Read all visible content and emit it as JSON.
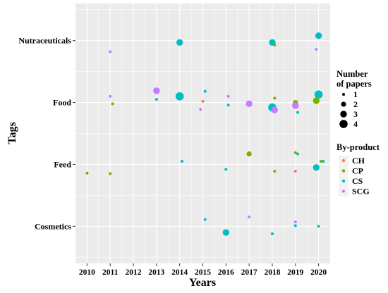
{
  "chart_data": {
    "type": "scatter",
    "xlabel": "Years",
    "ylabel": "Tags",
    "x_ticks": [
      "2010",
      "2011",
      "2012",
      "2013",
      "2014",
      "2015",
      "2016",
      "2017",
      "2018",
      "2019",
      "2020"
    ],
    "y_categories": [
      "Cosmetics",
      "Feed",
      "Food",
      "Nutraceuticals"
    ],
    "xlim": [
      2009.5,
      2020.5
    ],
    "grid": true,
    "legend_size": {
      "title_line1": "Number",
      "title_line2": "of papers",
      "labels": [
        "1",
        "2",
        "3",
        "4"
      ],
      "values": [
        1,
        2,
        3,
        4
      ]
    },
    "legend_color": {
      "title": "By-product",
      "labels": [
        "CH",
        "CP",
        "CS",
        "SCG"
      ]
    },
    "colors": {
      "CH": "#F8766D",
      "CP": "#7CAE00",
      "CS": "#00BFC4",
      "SCG": "#C77CFF",
      "panel": "#EBEBEB",
      "grid_major": "#FFFFFF"
    },
    "points": [
      {
        "x": 2010.0,
        "y": 0.86,
        "cat": "CP",
        "size": 1
      },
      {
        "x": 2011.0,
        "y": 0.85,
        "cat": "CP",
        "size": 1
      },
      {
        "x": 2014.1,
        "y": 1.05,
        "cat": "CS",
        "size": 1
      },
      {
        "x": 2016.0,
        "y": 0.92,
        "cat": "CS",
        "size": 1
      },
      {
        "x": 2017.0,
        "y": 1.17,
        "cat": "CP",
        "size": 2
      },
      {
        "x": 2018.1,
        "y": 0.89,
        "cat": "CP",
        "size": 1
      },
      {
        "x": 2019.0,
        "y": 1.19,
        "cat": "CP",
        "size": 1
      },
      {
        "x": 2019.1,
        "y": 1.17,
        "cat": "CS",
        "size": 1
      },
      {
        "x": 2019.0,
        "y": 0.89,
        "cat": "CH",
        "size": 1
      },
      {
        "x": 2019.9,
        "y": 0.95,
        "cat": "CS",
        "size": 3
      },
      {
        "x": 2020.1,
        "y": 1.05,
        "cat": "CP",
        "size": 1
      },
      {
        "x": 2020.2,
        "y": 1.05,
        "cat": "CS",
        "size": 1
      },
      {
        "x": 2011.0,
        "y": 2.1,
        "cat": "SCG",
        "size": 1
      },
      {
        "x": 2011.1,
        "y": 1.98,
        "cat": "CP",
        "size": 1
      },
      {
        "x": 2013.0,
        "y": 2.19,
        "cat": "SCG",
        "size": 3
      },
      {
        "x": 2013.0,
        "y": 2.05,
        "cat": "CS",
        "size": 1
      },
      {
        "x": 2014.0,
        "y": 2.1,
        "cat": "CS",
        "size": 4
      },
      {
        "x": 2015.1,
        "y": 2.18,
        "cat": "CS",
        "size": 1
      },
      {
        "x": 2015.0,
        "y": 2.02,
        "cat": "CH",
        "size": 1
      },
      {
        "x": 2014.9,
        "y": 1.89,
        "cat": "SCG",
        "size": 1
      },
      {
        "x": 2016.1,
        "y": 2.1,
        "cat": "SCG",
        "size": 1
      },
      {
        "x": 2016.1,
        "y": 1.96,
        "cat": "CS",
        "size": 1
      },
      {
        "x": 2017.0,
        "y": 1.98,
        "cat": "SCG",
        "size": 3
      },
      {
        "x": 2018.1,
        "y": 2.07,
        "cat": "CP",
        "size": 1
      },
      {
        "x": 2018.0,
        "y": 1.92,
        "cat": "CS",
        "size": 4
      },
      {
        "x": 2018.1,
        "y": 1.88,
        "cat": "SCG",
        "size": 3
      },
      {
        "x": 2019.0,
        "y": 2.01,
        "cat": "CH",
        "size": 1
      },
      {
        "x": 2019.0,
        "y": 2.0,
        "cat": "CP",
        "size": 2
      },
      {
        "x": 2019.0,
        "y": 1.95,
        "cat": "SCG",
        "size": 3
      },
      {
        "x": 2019.1,
        "y": 1.84,
        "cat": "CS",
        "size": 1
      },
      {
        "x": 2020.0,
        "y": 2.13,
        "cat": "CS",
        "size": 4
      },
      {
        "x": 2019.9,
        "y": 2.03,
        "cat": "CP",
        "size": 3
      },
      {
        "x": 2011.0,
        "y": 2.82,
        "cat": "SCG",
        "size": 1
      },
      {
        "x": 2014.0,
        "y": 2.97,
        "cat": "CS",
        "size": 3
      },
      {
        "x": 2018.0,
        "y": 2.97,
        "cat": "CS",
        "size": 3
      },
      {
        "x": 2018.1,
        "y": 2.93,
        "cat": "CP",
        "size": 1
      },
      {
        "x": 2019.9,
        "y": 2.86,
        "cat": "SCG",
        "size": 1
      },
      {
        "x": 2020.0,
        "y": 3.08,
        "cat": "CS",
        "size": 3
      },
      {
        "x": 2015.1,
        "y": 0.11,
        "cat": "CS",
        "size": 1
      },
      {
        "x": 2016.0,
        "y": -0.1,
        "cat": "CS",
        "size": 3
      },
      {
        "x": 2017.0,
        "y": 0.15,
        "cat": "SCG",
        "size": 1
      },
      {
        "x": 2018.0,
        "y": -0.12,
        "cat": "CS",
        "size": 1
      },
      {
        "x": 2019.0,
        "y": 0.07,
        "cat": "SCG",
        "size": 1
      },
      {
        "x": 2019.0,
        "y": 0.01,
        "cat": "CS",
        "size": 1
      },
      {
        "x": 2020.0,
        "y": 0.0,
        "cat": "CS",
        "size": 1
      }
    ]
  }
}
